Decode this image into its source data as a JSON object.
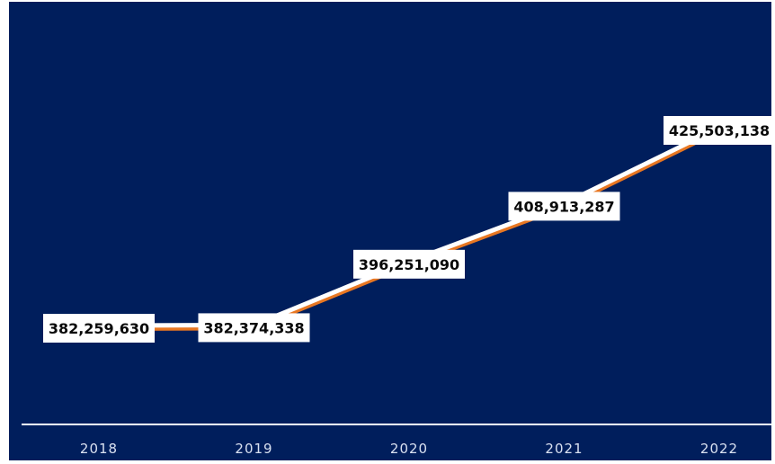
{
  "chart_data": {
    "type": "line",
    "categories": [
      "2018",
      "2019",
      "2020",
      "2021",
      "2022"
    ],
    "series": [
      {
        "values": [
          382259630,
          382374338,
          396251090,
          408913287,
          425503138
        ],
        "labels": [
          "382,259,630",
          "382,374,338",
          "396,251,090",
          "408,913,287",
          "425,503,138"
        ]
      }
    ],
    "title": "",
    "xlabel": "",
    "ylabel": "",
    "grid": false,
    "legend": "none",
    "colors": {
      "background": "#001e5c",
      "line": "#ffffff",
      "line_shadow": "#e87722",
      "axis": "#ffffff",
      "label_box": "#ffffff",
      "label_text": "#0a0a0a",
      "tick_text": "#d8e0f0"
    }
  }
}
